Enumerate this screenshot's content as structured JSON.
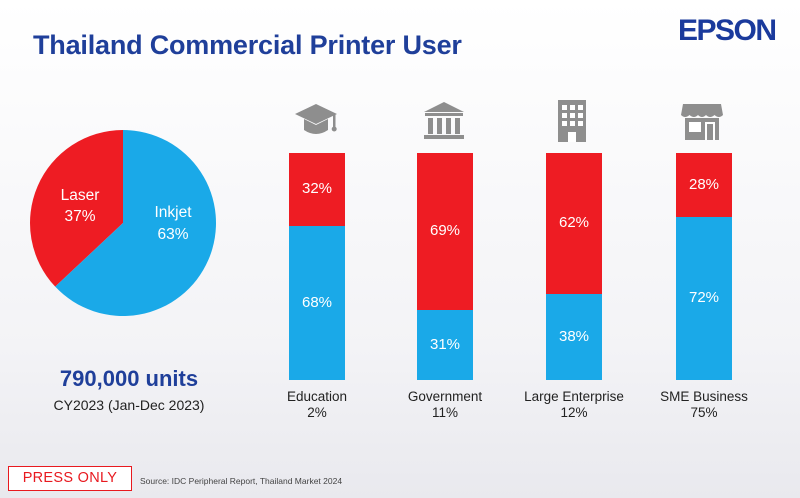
{
  "title": "Thailand Commercial Printer User",
  "brand": "EPSON",
  "colors": {
    "inkjet": "#1aa9e8",
    "laser": "#ee1c23",
    "title": "#1f3f9a",
    "icon": "#8e8e8e"
  },
  "summary": {
    "units": "790,000 units",
    "period": "CY2023 (Jan-Dec 2023)"
  },
  "footer": {
    "press_only": "PRESS ONLY",
    "source": "Source: IDC Peripheral Report, Thailand Market 2024"
  },
  "chart_data": [
    {
      "type": "pie",
      "slices": [
        {
          "label": "Laser",
          "value": 37,
          "display": "37%",
          "color": "#ee1c23"
        },
        {
          "label": "Inkjet",
          "value": 63,
          "display": "63%",
          "color": "#1aa9e8"
        }
      ]
    },
    {
      "type": "bar",
      "stacked": true,
      "percent": true,
      "ylim": [
        0,
        100
      ],
      "categories": [
        {
          "name": "Education",
          "share": "2%",
          "icon": "graduation-cap-icon"
        },
        {
          "name": "Government",
          "share": "11%",
          "icon": "government-building-icon"
        },
        {
          "name": "Large Enterprise",
          "share": "12%",
          "icon": "office-building-icon"
        },
        {
          "name": "SME Business",
          "share": "75%",
          "icon": "storefront-icon"
        }
      ],
      "series": [
        {
          "key": "inkjet",
          "color": "#1aa9e8",
          "values": [
            68,
            31,
            38,
            72
          ],
          "labels": [
            "68%",
            "31%",
            "38%",
            "72%"
          ]
        },
        {
          "key": "laser",
          "color": "#ee1c23",
          "values": [
            32,
            69,
            62,
            28
          ],
          "labels": [
            "32%",
            "69%",
            "62%",
            "28%"
          ]
        }
      ]
    }
  ]
}
